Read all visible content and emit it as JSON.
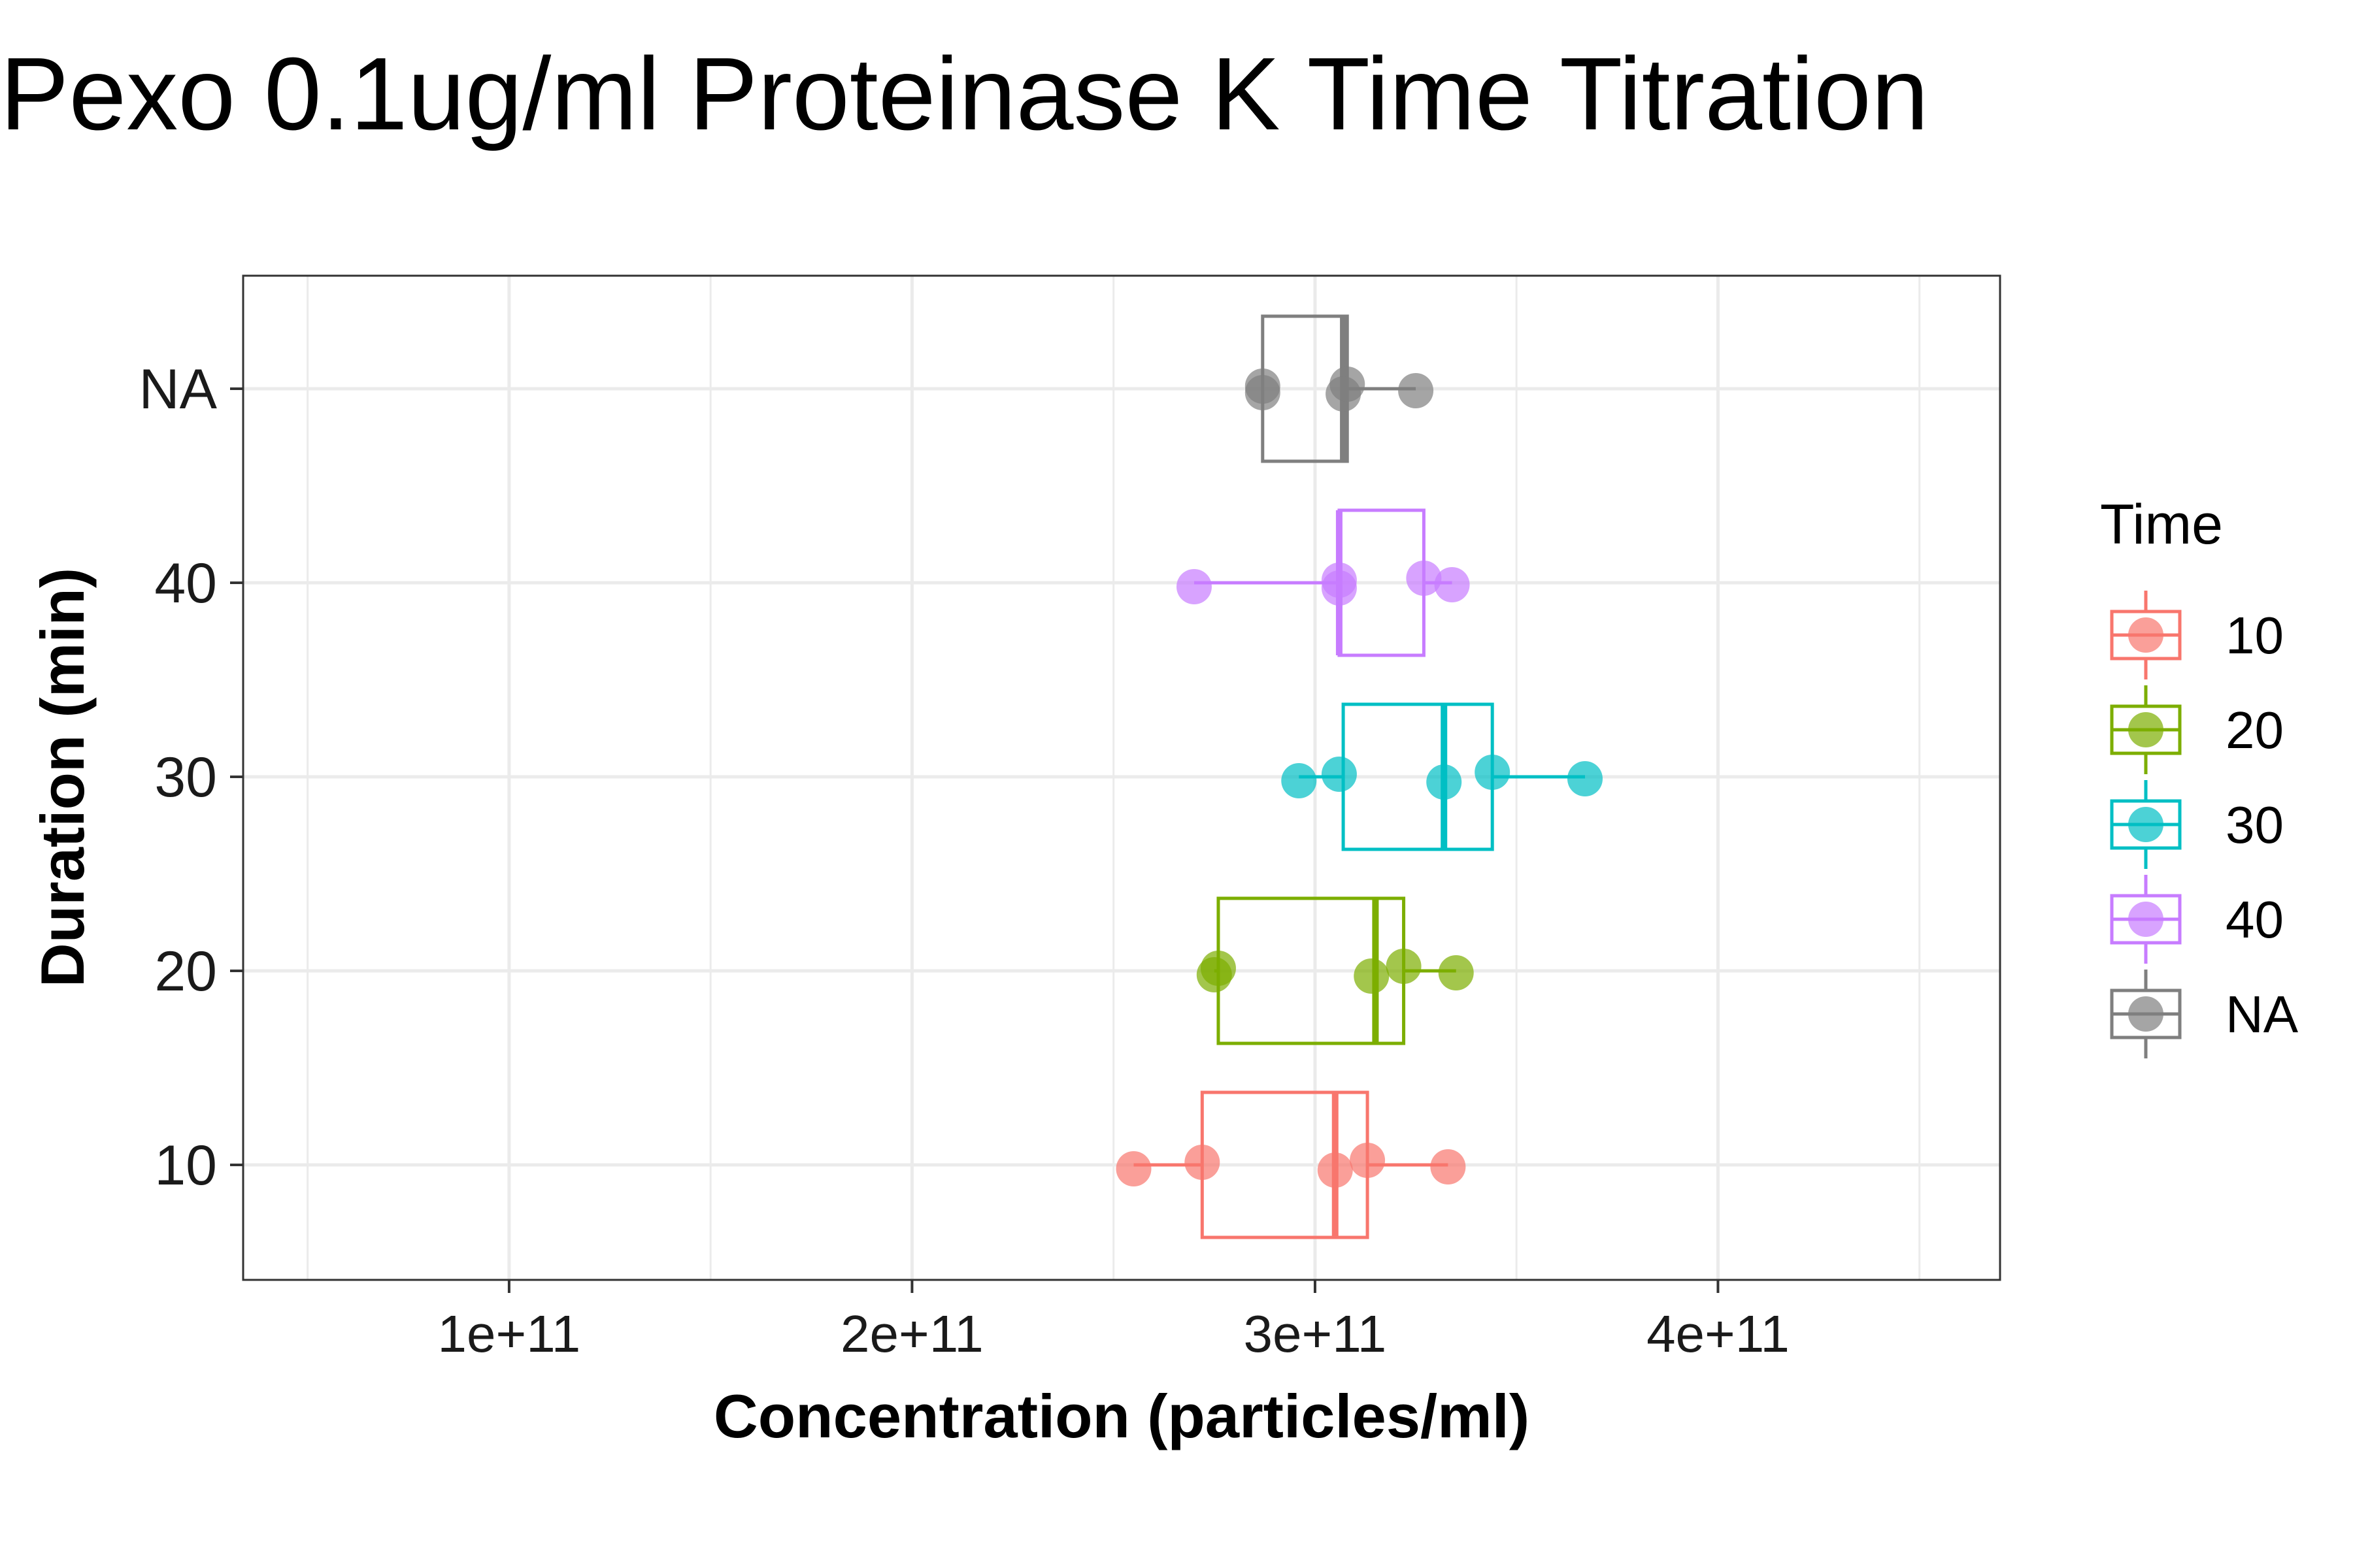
{
  "chart_data": {
    "type": "boxplot",
    "orientation": "horizontal",
    "title": "Pexo 0.1ug/ml Proteinase K  Time Titration",
    "xlabel": "Concentration (particles/ml)",
    "ylabel": "Duration (min)",
    "xlim": [
      34000000000.0,
      470000000000.0
    ],
    "x_ticks": [
      {
        "value": 100000000000.0,
        "label": "1e+11"
      },
      {
        "value": 200000000000.0,
        "label": "2e+11"
      },
      {
        "value": 300000000000.0,
        "label": "3e+11"
      },
      {
        "value": 400000000000.0,
        "label": "4e+11"
      }
    ],
    "x_minor_ticks": [
      50000000000.0,
      150000000000.0,
      250000000000.0,
      350000000000.0,
      450000000000.0
    ],
    "categories": [
      "10",
      "20",
      "30",
      "40",
      "NA"
    ],
    "grid": true,
    "legend": {
      "title": "Time",
      "placement": "right",
      "entries": [
        "10",
        "20",
        "30",
        "40",
        "NA"
      ]
    },
    "series": [
      {
        "name": "10",
        "color": "#F8766D",
        "box": {
          "min": 255000000000.0,
          "q1": 272000000000.0,
          "median": 305000000000.0,
          "q3": 313000000000.0,
          "max": 333000000000.0
        },
        "points": [
          255000000000.0,
          272000000000.0,
          305000000000.0,
          313000000000.0,
          333000000000.0
        ]
      },
      {
        "name": "20",
        "color": "#7CAE00",
        "box": {
          "min": 275000000000.0,
          "q1": 276000000000.0,
          "median": 315000000000.0,
          "q3": 322000000000.0,
          "max": 335000000000.0
        },
        "points": [
          275000000000.0,
          276000000000.0,
          314000000000.0,
          322000000000.0,
          335000000000.0
        ]
      },
      {
        "name": "30",
        "color": "#00BFC4",
        "box": {
          "min": 296000000000.0,
          "q1": 307000000000.0,
          "median": 332000000000.0,
          "q3": 344000000000.0,
          "max": 367000000000.0
        },
        "points": [
          296000000000.0,
          306000000000.0,
          332000000000.0,
          344000000000.0,
          367000000000.0
        ]
      },
      {
        "name": "40",
        "color": "#C77CFF",
        "box": {
          "min": 270000000000.0,
          "q1": 306000000000.0,
          "median": 306000000000.0,
          "q3": 327000000000.0,
          "max": 334000000000.0
        },
        "points": [
          270000000000.0,
          306000000000.0,
          306000000000.0,
          327000000000.0,
          334000000000.0
        ]
      },
      {
        "name": "NA",
        "color": "#7F7F7F",
        "box": {
          "min": 287000000000.0,
          "q1": 287000000000.0,
          "median": 307000000000.0,
          "q3": 308000000000.0,
          "max": 325000000000.0
        },
        "points": [
          287000000000.0,
          287000000000.0,
          307000000000.0,
          308000000000.0,
          325000000000.0
        ]
      }
    ]
  }
}
